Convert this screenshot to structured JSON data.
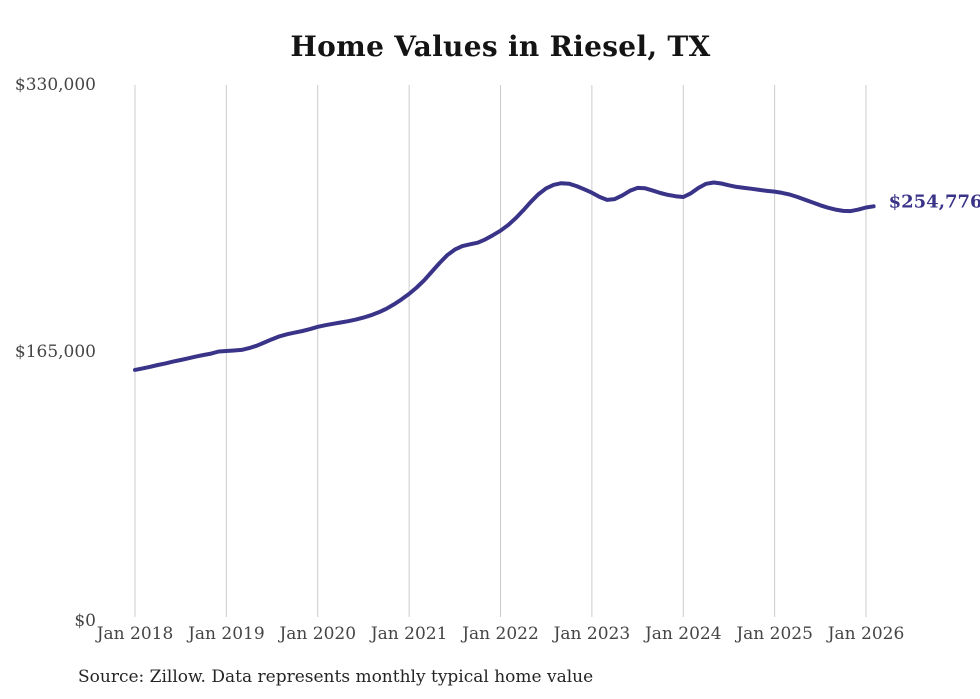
{
  "page": {
    "background": "#ffffff"
  },
  "chart_data": {
    "type": "line",
    "title": "Home Values in Riesel, TX",
    "xlabel": "",
    "ylabel": "",
    "ylim": [
      0,
      330000
    ],
    "y_tick_labels": [
      "$0",
      "$165,000",
      "$330,000"
    ],
    "y_tick_values": [
      0,
      165000,
      330000
    ],
    "x_tick_labels": [
      "Jan 2018",
      "Jan 2019",
      "Jan 2020",
      "Jan 2021",
      "Jan 2022",
      "Jan 2023",
      "Jan 2024",
      "Jan 2025",
      "Jan 2026"
    ],
    "grid": "vertical-only",
    "legend": "none",
    "line_color": "#3a3489",
    "gridline_color": "#cccccc",
    "end_label": "$254,776",
    "latest_value": 254776,
    "x": [
      "2018-01",
      "2018-02",
      "2018-03",
      "2018-04",
      "2018-05",
      "2018-06",
      "2018-07",
      "2018-08",
      "2018-09",
      "2018-10",
      "2018-11",
      "2018-12",
      "2019-01",
      "2019-02",
      "2019-03",
      "2019-04",
      "2019-05",
      "2019-06",
      "2019-07",
      "2019-08",
      "2019-09",
      "2019-10",
      "2019-11",
      "2019-12",
      "2020-01",
      "2020-02",
      "2020-03",
      "2020-04",
      "2020-05",
      "2020-06",
      "2020-07",
      "2020-08",
      "2020-09",
      "2020-10",
      "2020-11",
      "2020-12",
      "2021-01",
      "2021-02",
      "2021-03",
      "2021-04",
      "2021-05",
      "2021-06",
      "2021-07",
      "2021-08",
      "2021-09",
      "2021-10",
      "2021-11",
      "2021-12",
      "2022-01",
      "2022-02",
      "2022-03",
      "2022-04",
      "2022-05",
      "2022-06",
      "2022-07",
      "2022-08",
      "2022-09",
      "2022-10",
      "2022-11",
      "2022-12",
      "2023-01",
      "2023-02",
      "2023-03",
      "2023-04",
      "2023-05",
      "2023-06",
      "2023-07",
      "2023-08",
      "2023-09",
      "2023-10",
      "2023-11",
      "2023-12",
      "2024-01",
      "2024-02",
      "2024-03",
      "2024-04",
      "2024-05",
      "2024-06",
      "2024-07",
      "2024-08",
      "2024-09",
      "2024-10",
      "2024-11",
      "2024-12",
      "2025-01",
      "2025-02",
      "2025-03",
      "2025-04",
      "2025-05",
      "2025-06",
      "2025-07",
      "2025-08",
      "2025-09",
      "2025-10",
      "2025-11",
      "2025-12",
      "2026-01",
      "2026-02"
    ],
    "series": [
      {
        "name": "Monthly typical home value",
        "values": [
          153300,
          154200,
          155200,
          156300,
          157300,
          158400,
          159400,
          160500,
          161500,
          162500,
          163400,
          164700,
          165000,
          165300,
          165700,
          166800,
          168300,
          170300,
          172300,
          174100,
          175400,
          176400,
          177400,
          178600,
          180000,
          181000,
          181900,
          182700,
          183500,
          184500,
          185700,
          187200,
          189000,
          191200,
          193900,
          197000,
          200400,
          204400,
          209000,
          214300,
          219600,
          224400,
          227900,
          230100,
          231200,
          232200,
          234200,
          236800,
          239600,
          243100,
          247400,
          252300,
          257600,
          262300,
          265900,
          268100,
          269100,
          268800,
          267300,
          265300,
          263200,
          260600,
          258700,
          259200,
          261500,
          264400,
          266200,
          265900,
          264500,
          263000,
          261800,
          261000,
          260500,
          262800,
          266200,
          268700,
          269500,
          268900,
          267800,
          266800,
          266200,
          265600,
          264900,
          264300,
          263900,
          263100,
          262000,
          260500,
          258800,
          257100,
          255400,
          253900,
          252700,
          251900,
          251800,
          252700,
          254000,
          254776
        ]
      }
    ]
  },
  "footer": {
    "source": "Source: Zillow. Data represents monthly typical home value"
  }
}
